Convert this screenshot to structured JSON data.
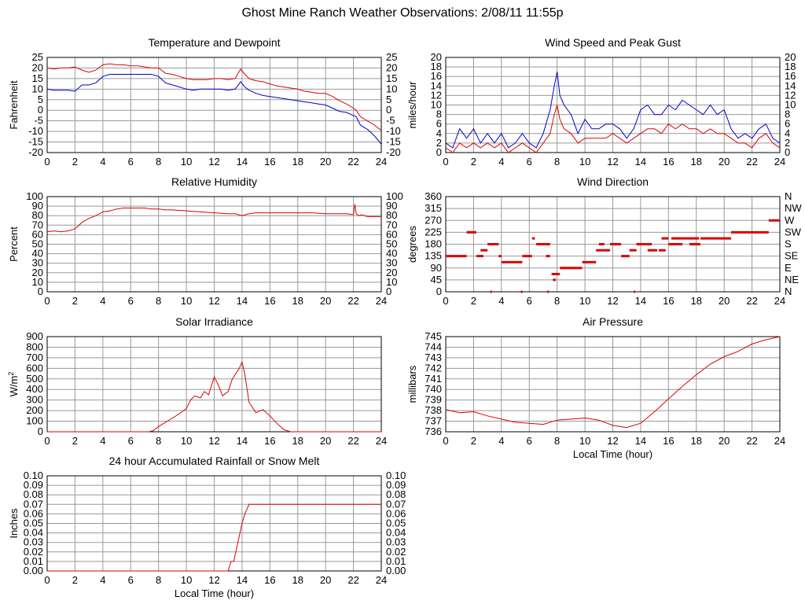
{
  "page": {
    "title": "Ghost Mine Ranch Weather Observations: 2/08/11 11:55p"
  },
  "colors": {
    "primary_series": "#dd0000",
    "secondary_series": "#0000cc",
    "grid": "#999999"
  },
  "chart_data": [
    {
      "id": "temperature",
      "type": "line",
      "title": "Temperature and Dewpoint",
      "ylabel": "Fahrenheit",
      "xlabel": "",
      "xlim": [
        0,
        24
      ],
      "ylim": [
        -20,
        25
      ],
      "xticks": [
        "0",
        "2",
        "4",
        "6",
        "8",
        "10",
        "12",
        "14",
        "16",
        "18",
        "20",
        "22",
        "24"
      ],
      "yticks": [
        "25",
        "20",
        "15",
        "10",
        "5",
        "0",
        "-5",
        "-10",
        "-15",
        "-20"
      ],
      "right_axis": true,
      "grid": true,
      "series": [
        {
          "color": "#dd0000",
          "x": [
            0,
            0.5,
            1,
            1.5,
            2,
            2.5,
            3,
            3.5,
            4,
            4.5,
            5,
            5.5,
            6,
            6.5,
            7,
            7.5,
            8,
            8.5,
            9,
            9.5,
            10,
            10.5,
            11,
            11.5,
            12,
            12.5,
            13,
            13.5,
            13.9,
            14.2,
            14.5,
            15,
            15.5,
            16,
            16.5,
            17,
            17.5,
            18,
            18.5,
            19,
            19.5,
            20,
            20.5,
            21,
            21.5,
            22,
            22.2,
            22.5,
            23,
            23.5,
            24
          ],
          "y": [
            20,
            19.5,
            20,
            20,
            20.5,
            19,
            18,
            19,
            21.5,
            22,
            21.5,
            21.5,
            21,
            21,
            20.5,
            20,
            20,
            17.5,
            17,
            16,
            15,
            14.5,
            14.5,
            14.5,
            15,
            15,
            14.5,
            15,
            19.5,
            17,
            15,
            14,
            13.5,
            12.5,
            11.5,
            11,
            10.5,
            10,
            9,
            8.5,
            8,
            8,
            6.5,
            4.5,
            3,
            1,
            0,
            -3,
            -5,
            -7,
            -9.5
          ]
        },
        {
          "color": "#0000cc",
          "x": [
            0,
            0.5,
            1,
            1.5,
            2,
            2.5,
            3,
            3.5,
            4,
            4.5,
            5,
            5.5,
            6,
            6.5,
            7,
            7.5,
            8,
            8.5,
            9,
            9.5,
            10,
            10.5,
            11,
            11.5,
            12,
            12.5,
            13,
            13.5,
            13.9,
            14.2,
            14.5,
            15,
            15.5,
            16,
            16.5,
            17,
            17.5,
            18,
            18.5,
            19,
            19.5,
            20,
            20.5,
            21,
            21.5,
            22,
            22.2,
            22.5,
            23,
            23.5,
            24
          ],
          "y": [
            10,
            9.5,
            9.5,
            9.5,
            9,
            12,
            12,
            13,
            16,
            17,
            17,
            17,
            17,
            17,
            17,
            17,
            16,
            13,
            12,
            11,
            10,
            9.5,
            10,
            10,
            10,
            10,
            9.5,
            10,
            13.5,
            11,
            9.5,
            8,
            7,
            6.5,
            6,
            5.5,
            5,
            4.5,
            4,
            3.5,
            3,
            2.5,
            1,
            -0.5,
            -1,
            -2.5,
            -3,
            -7,
            -9,
            -12,
            -16
          ]
        }
      ]
    },
    {
      "id": "wind-speed",
      "type": "line",
      "title": "Wind Speed and Peak Gust",
      "ylabel": "miles/hour",
      "xlabel": "",
      "xlim": [
        0,
        24
      ],
      "ylim": [
        0,
        20
      ],
      "xticks": [
        "0",
        "2",
        "4",
        "6",
        "8",
        "10",
        "12",
        "14",
        "16",
        "18",
        "20",
        "22",
        "24"
      ],
      "yticks": [
        "20",
        "18",
        "16",
        "14",
        "12",
        "10",
        "8",
        "6",
        "4",
        "2",
        "0"
      ],
      "right_axis": true,
      "grid": true,
      "series": [
        {
          "color": "#0000cc",
          "x": [
            0,
            0.5,
            1,
            1.5,
            2,
            2.5,
            3,
            3.5,
            4,
            4.5,
            5,
            5.5,
            6,
            6.5,
            7,
            7.5,
            7.8,
            8,
            8.2,
            8.5,
            9,
            9.5,
            10,
            10.5,
            11,
            11.5,
            12,
            12.5,
            13,
            13.5,
            14,
            14.5,
            15,
            15.5,
            16,
            16.5,
            17,
            17.5,
            18,
            18.5,
            19,
            19.5,
            20,
            20.5,
            21,
            21.5,
            22,
            22.5,
            23,
            23.5,
            24
          ],
          "y": [
            2,
            1,
            5,
            3,
            5,
            2,
            4,
            2,
            4,
            1,
            2,
            4,
            2,
            1,
            4,
            9,
            14,
            17,
            12,
            10,
            8,
            4,
            7,
            5,
            5,
            6,
            6,
            5,
            3,
            5,
            9,
            10,
            8,
            8,
            10,
            9,
            11,
            10,
            9,
            8,
            10,
            8,
            9,
            5,
            3,
            4,
            3,
            5,
            6,
            3,
            2
          ]
        },
        {
          "color": "#dd0000",
          "x": [
            0,
            0.5,
            1,
            1.5,
            2,
            2.5,
            3,
            3.5,
            4,
            4.5,
            5,
            5.5,
            6,
            6.5,
            7,
            7.5,
            7.8,
            8,
            8.2,
            8.5,
            9,
            9.5,
            10,
            10.5,
            11,
            11.5,
            12,
            12.5,
            13,
            13.5,
            14,
            14.5,
            15,
            15.5,
            16,
            16.5,
            17,
            17.5,
            18,
            18.5,
            19,
            19.5,
            20,
            20.5,
            21,
            21.5,
            22,
            22.5,
            23,
            23.5,
            24
          ],
          "y": [
            1,
            0,
            2,
            1,
            2,
            1,
            2,
            1,
            2,
            0,
            1,
            2,
            1,
            0,
            2,
            4,
            8,
            10,
            7,
            5,
            4,
            2,
            3,
            3,
            3,
            3,
            4,
            3,
            2,
            3,
            4,
            5,
            5,
            4,
            6,
            5,
            6,
            5,
            5,
            4,
            5,
            4,
            4,
            3,
            2,
            2,
            1,
            3,
            4,
            2,
            1
          ]
        }
      ]
    },
    {
      "id": "humidity",
      "type": "line",
      "title": "Relative Humidity",
      "ylabel": "Percent",
      "xlabel": "",
      "xlim": [
        0,
        24
      ],
      "ylim": [
        0,
        100
      ],
      "xticks": [
        "0",
        "2",
        "4",
        "6",
        "8",
        "10",
        "12",
        "14",
        "16",
        "18",
        "20",
        "22",
        "24"
      ],
      "yticks": [
        "100",
        "90",
        "80",
        "70",
        "60",
        "50",
        "40",
        "30",
        "20",
        "10",
        "0"
      ],
      "right_axis": true,
      "grid": true,
      "series": [
        {
          "color": "#dd0000",
          "x": [
            0,
            0.5,
            1,
            1.5,
            2,
            2.5,
            3,
            3.5,
            4,
            4.5,
            5,
            5.5,
            6,
            6.5,
            7,
            7.5,
            8,
            8.5,
            9,
            10,
            11,
            12,
            13,
            13.5,
            14,
            14.5,
            15,
            16,
            17,
            18,
            19,
            20,
            21,
            21.5,
            22,
            22.1,
            22.2,
            22.4,
            22.6,
            23,
            23.5,
            24
          ],
          "y": [
            63,
            64,
            63,
            64,
            66,
            73,
            77,
            80,
            84,
            85,
            87,
            88,
            88,
            88,
            88,
            87,
            87,
            86,
            86,
            85,
            84,
            83,
            82,
            82,
            80,
            82,
            83,
            83,
            83,
            83,
            83,
            82,
            82,
            82,
            81,
            92,
            82,
            80,
            81,
            79,
            79,
            79
          ]
        }
      ]
    },
    {
      "id": "wind-direction",
      "type": "scatter",
      "title": "Wind Direction",
      "ylabel": "degrees",
      "xlabel": "",
      "xlim": [
        0,
        24
      ],
      "ylim": [
        0,
        360
      ],
      "xticks": [
        "0",
        "2",
        "4",
        "6",
        "8",
        "10",
        "12",
        "14",
        "16",
        "18",
        "20",
        "22",
        "24"
      ],
      "yticks": [
        "360",
        "315",
        "270",
        "225",
        "180",
        "135",
        "90",
        "45",
        "0"
      ],
      "right_ticks": [
        "N",
        "NW",
        "W",
        "SW",
        "S",
        "SE",
        "E",
        "NE",
        "N"
      ],
      "grid": true,
      "segments": [
        [
          0,
          1.5,
          135
        ],
        [
          1.5,
          2.2,
          225
        ],
        [
          2.2,
          2.7,
          135
        ],
        [
          2.5,
          3,
          157
        ],
        [
          3,
          3.8,
          180
        ],
        [
          3.8,
          4,
          135
        ],
        [
          4,
          5.2,
          112
        ],
        [
          5.2,
          5.5,
          112
        ],
        [
          5.5,
          6.2,
          135
        ],
        [
          6.2,
          6.4,
          202
        ],
        [
          6.5,
          7.5,
          180
        ],
        [
          7.2,
          7.5,
          135
        ],
        [
          7.6,
          8.2,
          67
        ],
        [
          7.7,
          7.9,
          45
        ],
        [
          8.2,
          9.2,
          90
        ],
        [
          9.2,
          9.8,
          90
        ],
        [
          9.8,
          10.8,
          112
        ],
        [
          10.8,
          11.8,
          157
        ],
        [
          11,
          11.4,
          180
        ],
        [
          11.8,
          12.6,
          180
        ],
        [
          12.6,
          13.2,
          135
        ],
        [
          13.2,
          13.7,
          157
        ],
        [
          13.7,
          14.8,
          180
        ],
        [
          14.5,
          15.2,
          157
        ],
        [
          15.3,
          15.8,
          157
        ],
        [
          15.5,
          16,
          202
        ],
        [
          16,
          17,
          180
        ],
        [
          16.2,
          17,
          202
        ],
        [
          17,
          18.2,
          202
        ],
        [
          17.5,
          18.3,
          180
        ],
        [
          18.3,
          20.5,
          202
        ],
        [
          20.5,
          23.2,
          225
        ],
        [
          23.2,
          24,
          270
        ],
        [
          3.2,
          3.3,
          0
        ],
        [
          5.4,
          5.5,
          0
        ],
        [
          7.3,
          7.4,
          0
        ],
        [
          13.5,
          13.6,
          0
        ]
      ]
    },
    {
      "id": "solar",
      "type": "line",
      "title": "Solar Irradiance",
      "ylabel": "W/m",
      "ylabel_sup": "2",
      "xlabel": "",
      "xlim": [
        0,
        24
      ],
      "ylim": [
        0,
        900
      ],
      "xticks": [
        "0",
        "2",
        "4",
        "6",
        "8",
        "10",
        "12",
        "14",
        "16",
        "18",
        "20",
        "22",
        "24"
      ],
      "yticks": [
        "900",
        "800",
        "700",
        "600",
        "500",
        "400",
        "300",
        "200",
        "100",
        "0"
      ],
      "right_axis": false,
      "grid": true,
      "series": [
        {
          "color": "#dd0000",
          "x": [
            0,
            7.3,
            7.6,
            8,
            8.5,
            9,
            9.5,
            10,
            10.3,
            10.6,
            11,
            11.3,
            11.6,
            12,
            12.3,
            12.6,
            13,
            13.3,
            13.6,
            13.8,
            14,
            14.2,
            14.5,
            15,
            15.5,
            16,
            16.5,
            17,
            17.5,
            18,
            24
          ],
          "y": [
            0,
            0,
            10,
            50,
            90,
            130,
            170,
            220,
            300,
            340,
            320,
            380,
            350,
            520,
            440,
            340,
            380,
            500,
            560,
            600,
            660,
            540,
            280,
            180,
            210,
            150,
            80,
            20,
            0,
            0,
            0
          ]
        }
      ]
    },
    {
      "id": "pressure",
      "type": "line",
      "title": "Air Pressure",
      "ylabel": "millibars",
      "xlabel": "Local Time (hour)",
      "xlim": [
        0,
        24
      ],
      "ylim": [
        736,
        745
      ],
      "xticks": [
        "0",
        "2",
        "4",
        "6",
        "8",
        "10",
        "12",
        "14",
        "16",
        "18",
        "20",
        "22",
        "24"
      ],
      "yticks": [
        "745",
        "744",
        "743",
        "742",
        "741",
        "740",
        "739",
        "738",
        "737",
        "736"
      ],
      "right_axis": false,
      "grid": true,
      "series": [
        {
          "color": "#dd0000",
          "x": [
            0,
            1,
            2,
            3,
            4,
            5,
            6,
            7,
            8,
            9,
            10,
            11,
            12,
            13,
            14,
            15,
            16,
            17,
            18,
            19,
            20,
            21,
            22,
            23,
            24
          ],
          "y": [
            738.1,
            737.8,
            737.9,
            737.5,
            737.2,
            736.9,
            736.8,
            736.7,
            737.1,
            737.2,
            737.3,
            737.1,
            736.6,
            736.4,
            736.8,
            737.9,
            739.1,
            740.3,
            741.4,
            742.4,
            743.1,
            743.6,
            744.3,
            744.7,
            745.0
          ]
        }
      ]
    },
    {
      "id": "rainfall",
      "type": "line",
      "title": "24 hour Accumulated Rainfall or Snow Melt",
      "ylabel": "Inches",
      "xlabel": "Local Time (hour)",
      "xlim": [
        0,
        24
      ],
      "ylim": [
        0,
        0.1
      ],
      "xticks": [
        "0",
        "2",
        "4",
        "6",
        "8",
        "10",
        "12",
        "14",
        "16",
        "18",
        "20",
        "22",
        "24"
      ],
      "yticks": [
        "0.10",
        "0.09",
        "0.08",
        "0.07",
        "0.06",
        "0.05",
        "0.04",
        "0.03",
        "0.02",
        "0.01",
        "0.00"
      ],
      "right_axis": true,
      "grid": true,
      "series": [
        {
          "color": "#dd0000",
          "x": [
            0,
            13,
            13.2,
            13.4,
            13.7,
            14,
            14.2,
            14.5,
            15,
            24
          ],
          "y": [
            0,
            0,
            0.01,
            0.01,
            0.03,
            0.05,
            0.06,
            0.07,
            0.07,
            0.07
          ]
        }
      ]
    }
  ]
}
